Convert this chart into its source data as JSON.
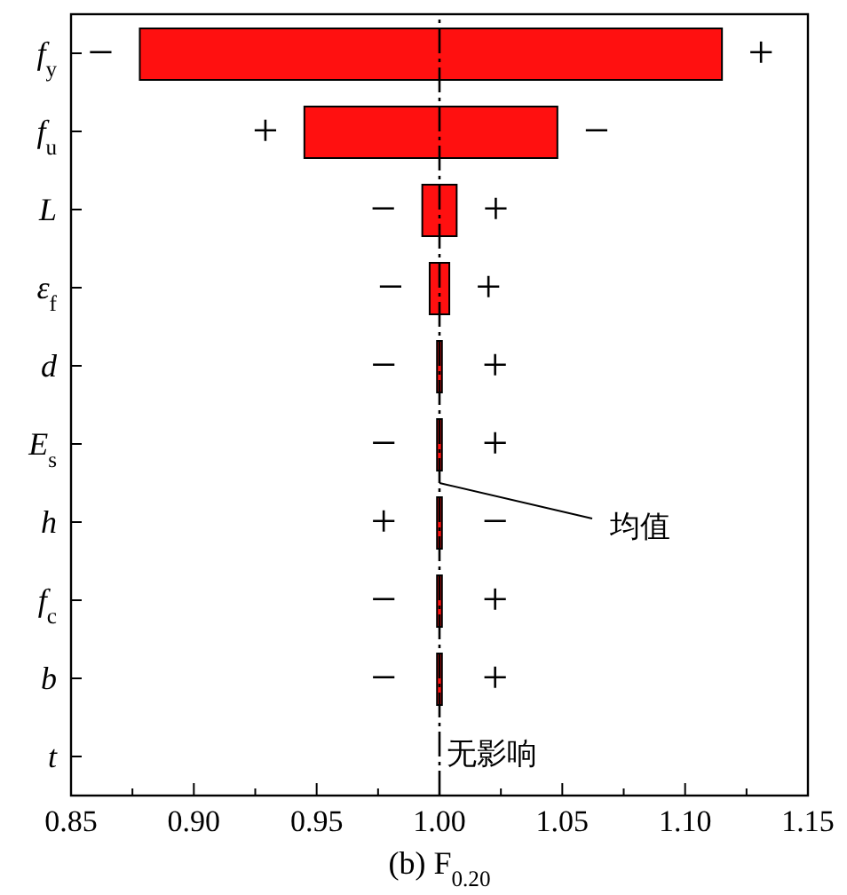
{
  "chart_data": {
    "type": "bar",
    "orientation": "horizontal",
    "xlabel": "(b) F$_{0.20}$",
    "categories": [
      "f$_{y}$",
      "f$_{u}$",
      "L",
      "ε$_{f}$",
      "d",
      "E$_{s}$",
      "h",
      "f$_{c}$",
      "b",
      "t"
    ],
    "base": [
      0.878,
      0.945,
      0.993,
      0.996,
      0.999,
      0.999,
      0.999,
      0.999,
      0.999,
      null
    ],
    "values": [
      0.237,
      0.103,
      0.014,
      0.008,
      0.002,
      0.002,
      0.002,
      0.002,
      0.002,
      null
    ],
    "color": "#ff1010",
    "xlim": [
      0.85,
      1.15
    ],
    "xticks": [
      0.85,
      {
        "value": 0.875,
        "label": null
      },
      "0.90",
      {
        "value": 0.925,
        "label": null
      },
      0.95,
      {
        "value": 0.975,
        "label": null
      },
      "1.00",
      {
        "value": 1.025,
        "label": null
      },
      1.05,
      {
        "value": 1.075,
        "label": null
      },
      "1.10",
      {
        "value": 1.125,
        "label": null
      },
      1.15
    ],
    "ref_lines": [
      {
        "axis": "x",
        "value": 1.0,
        "label": "均值",
        "line_style": "dashed"
      }
    ],
    "annotations": [
      {
        "text": "−",
        "x": 0.878,
        "y": "f$_{y}$"
      },
      {
        "text": "+",
        "x": 1.115,
        "y": "f$_{y}$"
      },
      {
        "text": "+",
        "x": 0.945,
        "y": "f$_{u}$"
      },
      {
        "text": "−",
        "x": 1.048,
        "y": "f$_{u}$"
      },
      {
        "text": "−",
        "x": 0.993,
        "y": "L"
      },
      {
        "text": "+",
        "x": 1.007,
        "y": "L"
      },
      {
        "text": "−",
        "x": 0.996,
        "y": "ε$_{f}$"
      },
      {
        "text": "+",
        "x": 1.004,
        "y": "ε$_{f}$"
      },
      {
        "text": "−",
        "x": 0.999,
        "y": "d"
      },
      {
        "text": "+",
        "x": 1.001,
        "y": "d"
      },
      {
        "text": "−",
        "x": 0.999,
        "y": "E$_{s}$"
      },
      {
        "text": "+",
        "x": 1.001,
        "y": "E$_{s}$"
      },
      {
        "text": "+",
        "x": 0.999,
        "y": "h"
      },
      {
        "text": "−",
        "x": 1.001,
        "y": "h"
      },
      {
        "text": "−",
        "x": 0.999,
        "y": "f$_{c}$"
      },
      {
        "text": "+",
        "x": 1.001,
        "y": "f$_{c}$"
      },
      {
        "text": "−",
        "x": 0.999,
        "y": "b"
      },
      {
        "text": "+",
        "x": 1.001,
        "y": "b"
      },
      {
        "text": "无影响",
        "x": 1.0,
        "y": "t"
      }
    ]
  }
}
